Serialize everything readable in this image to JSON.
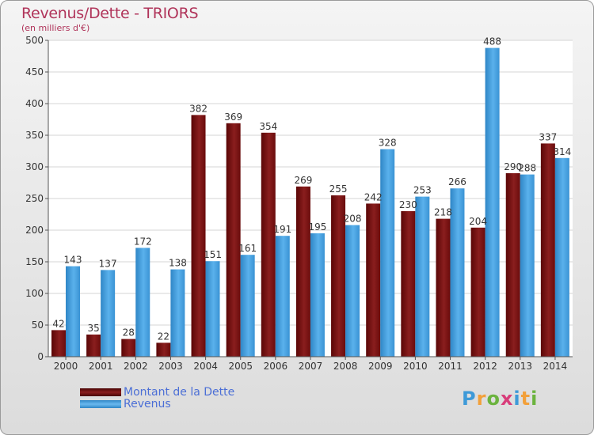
{
  "header": {
    "title": "Revenus/Dette - TRIORS",
    "subtitle": "(en milliers d'€)"
  },
  "legend": {
    "items": [
      {
        "label": "Montant de la Dette",
        "color": "#7a1010"
      },
      {
        "label": "Revenus",
        "color": "#4aa3e2"
      }
    ]
  },
  "logo": {
    "text": "Proxiti"
  },
  "chart_data": {
    "type": "bar",
    "title": "Revenus/Dette - TRIORS",
    "ylabel": "(en milliers d'€)",
    "xlabel": "",
    "ylim": [
      0,
      500
    ],
    "yticks": [
      0,
      50,
      100,
      150,
      200,
      250,
      300,
      350,
      400,
      450,
      500
    ],
    "grid": true,
    "categories": [
      "2000",
      "2001",
      "2002",
      "2003",
      "2004",
      "2005",
      "2006",
      "2007",
      "2008",
      "2009",
      "2010",
      "2011",
      "2012",
      "2013",
      "2014"
    ],
    "series": [
      {
        "name": "Montant de la Dette",
        "color": "#7a1010",
        "values": [
          42,
          35,
          28,
          22,
          382,
          369,
          354,
          269,
          255,
          242,
          230,
          218,
          204,
          290,
          337
        ]
      },
      {
        "name": "Revenus",
        "color": "#4aa3e2",
        "values": [
          143,
          137,
          172,
          138,
          151,
          161,
          191,
          195,
          208,
          328,
          253,
          266,
          488,
          288,
          314
        ]
      }
    ]
  }
}
